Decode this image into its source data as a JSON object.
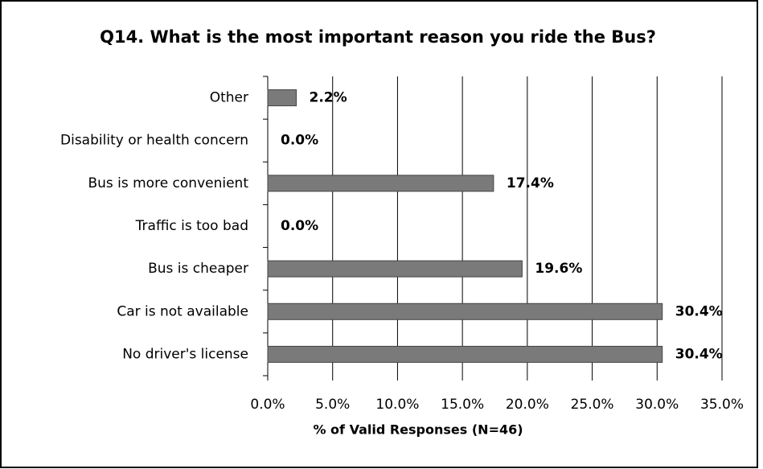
{
  "chart_data": {
    "type": "bar",
    "orientation": "horizontal",
    "title": "Q14. What is the most important reason you ride the Bus?",
    "x_label": "% of Valid Responses (N=46)",
    "categories": [
      "Other",
      "Disability or health concern",
      "Bus is more convenient",
      "Traffic is too bad",
      "Bus is cheaper",
      "Car is not available",
      "No driver's license"
    ],
    "values": [
      2.2,
      0.0,
      17.4,
      0.0,
      19.6,
      30.4,
      30.4
    ],
    "value_labels": [
      "2.2%",
      "0.0%",
      "17.4%",
      "0.0%",
      "19.6%",
      "30.4%",
      "30.4%"
    ],
    "color": "#7a7a7a",
    "xlim": [
      0,
      35
    ],
    "xticks": [
      {
        "value": 0,
        "label": "0.0%"
      },
      {
        "value": 5,
        "label": "5.0%"
      },
      {
        "value": 10,
        "label": "10.0%"
      },
      {
        "value": 15,
        "label": "15.0%"
      },
      {
        "value": 20,
        "label": "20.0%"
      },
      {
        "value": 25,
        "label": "25.0%"
      },
      {
        "value": 30,
        "label": "30.0%"
      },
      {
        "value": 35,
        "label": "35.0%"
      }
    ],
    "grid": true
  }
}
